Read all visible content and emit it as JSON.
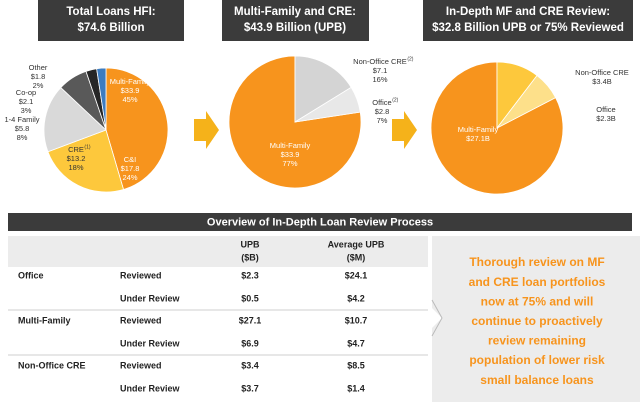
{
  "chart_data": [
    {
      "type": "pie",
      "title": "Total Loans HFI:",
      "subtitle": "$74.6 Billion",
      "categories": [
        "Multi-Family",
        "C&I",
        "CRE",
        "1-4 Family",
        "Co-op",
        "Other"
      ],
      "notes": [
        null,
        null,
        "(1)",
        null,
        null,
        null
      ],
      "values": [
        33.9,
        17.8,
        13.2,
        5.8,
        2.1,
        1.8
      ],
      "value_labels": [
        "$33.9",
        "$17.8",
        "$13.2",
        "$5.8",
        "$2.1",
        "$1.8"
      ],
      "percents": [
        45,
        24,
        18,
        8,
        3,
        2
      ],
      "percent_labels": [
        "45%",
        "24%",
        "18%",
        "8%",
        "3%",
        "2%"
      ],
      "colors": [
        "#f7941d",
        "#fdc83c",
        "#d9d9d9",
        "#595959",
        "#262626",
        "#3d7cc0"
      ]
    },
    {
      "type": "pie",
      "title": "Multi-Family and CRE:",
      "subtitle": "$43.9 Billion (UPB)",
      "categories": [
        "Multi-Family",
        "Non-Office CRE",
        "Office"
      ],
      "notes": [
        null,
        "(2)",
        "(2)"
      ],
      "values": [
        33.9,
        7.1,
        2.8
      ],
      "value_labels": [
        "$33.9",
        "$7.1",
        "$2.8"
      ],
      "percents": [
        77,
        16,
        7
      ],
      "percent_labels": [
        "77%",
        "16%",
        "7%"
      ],
      "colors": [
        "#f7941d",
        "#d4d4d4",
        "#e8e8e8"
      ]
    },
    {
      "type": "pie",
      "title": "In-Depth MF and CRE Review:",
      "subtitle": "$32.8 Billion UPB or 75% Reviewed",
      "categories": [
        "Multi-Family",
        "Non-Office CRE",
        "Office"
      ],
      "values": [
        27.1,
        3.4,
        2.3
      ],
      "value_labels": [
        "$27.1B",
        "$3.4B",
        "$2.3B"
      ],
      "colors": [
        "#f7941d",
        "#fdc83c",
        "#fde08a"
      ]
    }
  ],
  "table": {
    "title": "Overview of In-Depth Loan Review Process",
    "columns": [
      [
        "UPB",
        "($B)"
      ],
      [
        "Average UPB",
        "($M)"
      ]
    ],
    "groups": [
      {
        "name": "Office",
        "rows": [
          [
            "Reviewed",
            "$2.3",
            "$24.1"
          ],
          [
            "Under Review",
            "$0.5",
            "$4.2"
          ]
        ]
      },
      {
        "name": "Multi-Family",
        "rows": [
          [
            "Reviewed",
            "$27.1",
            "$10.7"
          ],
          [
            "Under Review",
            "$6.9",
            "$4.7"
          ]
        ]
      },
      {
        "name": "Non-Office CRE",
        "rows": [
          [
            "Reviewed",
            "$3.4",
            "$8.5"
          ],
          [
            "Under Review",
            "$3.7",
            "$1.4"
          ]
        ]
      }
    ]
  },
  "callout": {
    "lines": [
      "Thorough review on MF",
      "and CRE loan portfolios",
      "now at 75% and will",
      "continue to proactively",
      "review remaining",
      "population of lower risk",
      "small balance loans"
    ]
  }
}
